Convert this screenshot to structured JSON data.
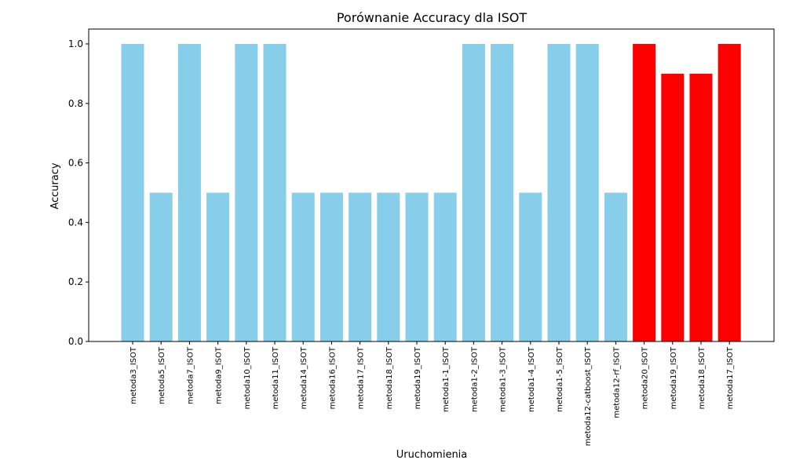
{
  "chart_data": {
    "type": "bar",
    "title": "Porównanie Accuracy dla ISOT",
    "xlabel": "Uruchomienia",
    "ylabel": "Accuracy",
    "ylim": [
      0,
      1.05
    ],
    "yticks": [
      0.0,
      0.2,
      0.4,
      0.6,
      0.8,
      1.0
    ],
    "ytick_labels": [
      "0.0",
      "0.2",
      "0.4",
      "0.6",
      "0.8",
      "1.0"
    ],
    "grid": false,
    "categories": [
      "metoda3_ISOT",
      "metoda5_ISOT",
      "metoda7_ISOT",
      "metoda9_ISOT",
      "metoda10_ISOT",
      "metoda11_ISOT",
      "metoda14_ISOT",
      "metoda16_ISOT",
      "metoda17_ISOT",
      "metoda18_ISOT",
      "metoda19_ISOT",
      "metoda1-1_ISOT",
      "metoda1-2_ISOT",
      "metoda1-3_ISOT",
      "metoda1-4_ISOT",
      "metoda1-5_ISOT",
      "metoda12-catboost_ISOT",
      "metoda12-rf_ISOT",
      "metoda20_ISOT",
      "metoda19_ISOT",
      "metoda18_ISOT",
      "metoda17_ISOT"
    ],
    "values": [
      1.0,
      0.5,
      1.0,
      0.5,
      1.0,
      1.0,
      0.5,
      0.5,
      0.5,
      0.5,
      0.5,
      0.5,
      1.0,
      1.0,
      0.5,
      1.0,
      1.0,
      0.5,
      1.0,
      0.9,
      0.9,
      1.0
    ],
    "colors": [
      "#87ceeb",
      "#87ceeb",
      "#87ceeb",
      "#87ceeb",
      "#87ceeb",
      "#87ceeb",
      "#87ceeb",
      "#87ceeb",
      "#87ceeb",
      "#87ceeb",
      "#87ceeb",
      "#87ceeb",
      "#87ceeb",
      "#87ceeb",
      "#87ceeb",
      "#87ceeb",
      "#87ceeb",
      "#87ceeb",
      "#ff0000",
      "#ff0000",
      "#ff0000",
      "#ff0000"
    ]
  }
}
